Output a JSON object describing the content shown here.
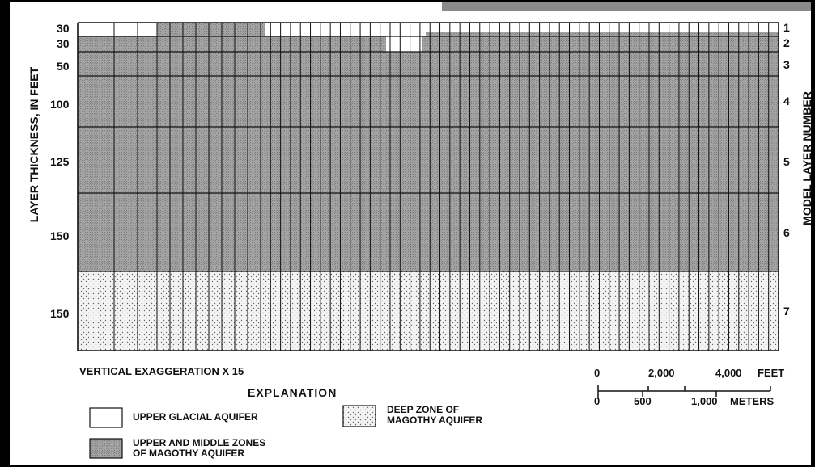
{
  "layer_thickness_labels": [
    "30",
    "30",
    "50",
    "100",
    "125",
    "150",
    "150"
  ],
  "layer_number_labels": [
    "1",
    "2",
    "3",
    "4",
    "5",
    "6",
    "7"
  ],
  "left_axis_label": "LAYER THICKNESS, IN FEET",
  "right_axis_label": "MODEL LAYER NUMBER",
  "vertical_exaggeration": "VERTICAL EXAGGERATION X 15",
  "explanation": {
    "title": "EXPLANATION",
    "items": [
      {
        "pattern": "white",
        "line1": "UPPER GLACIAL AQUIFER",
        "line2": ""
      },
      {
        "pattern": "dotted",
        "line1": "DEEP ZONE OF",
        "line2": "MAGOTHY AQUIFER"
      },
      {
        "pattern": "gray",
        "line1": "UPPER AND MIDDLE ZONES",
        "line2": "OF MAGOTHY AQUIFER"
      }
    ]
  },
  "scale_bar": {
    "feet_ticks": [
      "0",
      "2,000",
      "4,000"
    ],
    "feet_unit": "FEET",
    "meter_ticks": [
      "0",
      "500",
      "1,000"
    ],
    "meter_unit": "METERS"
  },
  "colors": {
    "gray_fill": "#9c9c9c",
    "dot_fill": "#f2f2f2",
    "grid_line": "#111111"
  }
}
